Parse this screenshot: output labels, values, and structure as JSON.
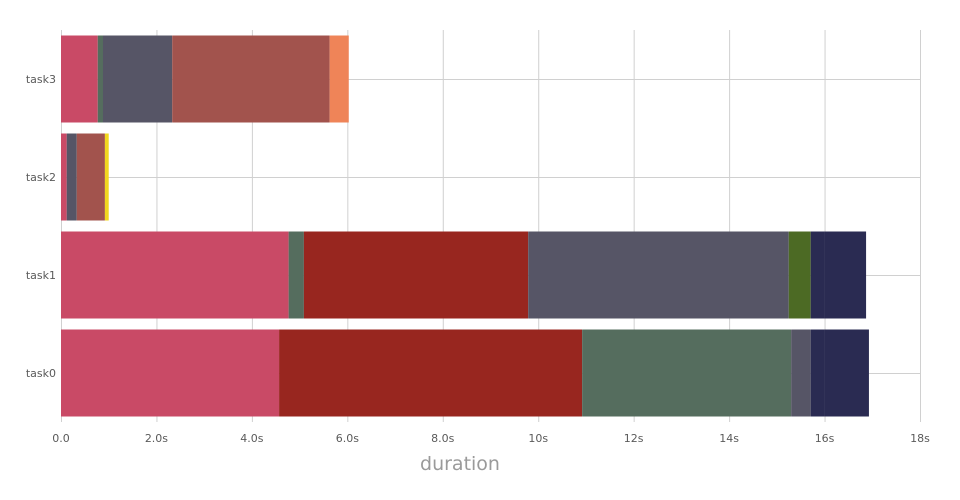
{
  "chart_data": {
    "type": "bar",
    "orientation": "horizontal",
    "stacked": true,
    "title": "",
    "xlabel": "duration",
    "ylabel": "",
    "xlim": [
      0,
      18
    ],
    "x_tick_values": [
      0,
      2,
      4,
      6,
      8,
      10,
      12,
      14,
      16,
      18
    ],
    "x_tick_labels": [
      "0.0",
      "2.0s",
      "4.0s",
      "6.0s",
      "8.0s",
      "10s",
      "12s",
      "14s",
      "16s",
      "18s"
    ],
    "grid": true,
    "legend": "none",
    "categories": [
      "task0",
      "task1",
      "task2",
      "task3"
    ],
    "rows": [
      {
        "category": "task0",
        "segments": [
          {
            "value": 4.57,
            "color": "#C94A66"
          },
          {
            "value": 6.35,
            "color": "#98261F"
          },
          {
            "value": 4.38,
            "color": "#556D5E"
          },
          {
            "value": 0.41,
            "color": "#565566"
          },
          {
            "value": 0.29,
            "color": "#2A2B52"
          },
          {
            "value": 0.93,
            "color": "#2A2B52"
          }
        ]
      },
      {
        "category": "task1",
        "segments": [
          {
            "value": 4.77,
            "color": "#C94A66"
          },
          {
            "value": 0.32,
            "color": "#556D5E"
          },
          {
            "value": 4.7,
            "color": "#98261F"
          },
          {
            "value": 5.46,
            "color": "#565566"
          },
          {
            "value": 0.46,
            "color": "#4C6A24"
          },
          {
            "value": 0.29,
            "color": "#2A2B52"
          },
          {
            "value": 0.87,
            "color": "#2A2B52"
          }
        ]
      },
      {
        "category": "task2",
        "segments": [
          {
            "value": 0.12,
            "color": "#C94A66"
          },
          {
            "value": 0.21,
            "color": "#565566"
          },
          {
            "value": 0.59,
            "color": "#A2534D"
          },
          {
            "value": 0.08,
            "color": "#F2D61F"
          }
        ]
      },
      {
        "category": "task3",
        "segments": [
          {
            "value": 0.77,
            "color": "#C94A66"
          },
          {
            "value": 0.11,
            "color": "#556D5E"
          },
          {
            "value": 1.45,
            "color": "#565566"
          },
          {
            "value": 3.3,
            "color": "#A2534D"
          },
          {
            "value": 0.4,
            "color": "#EF8458"
          }
        ]
      }
    ]
  }
}
